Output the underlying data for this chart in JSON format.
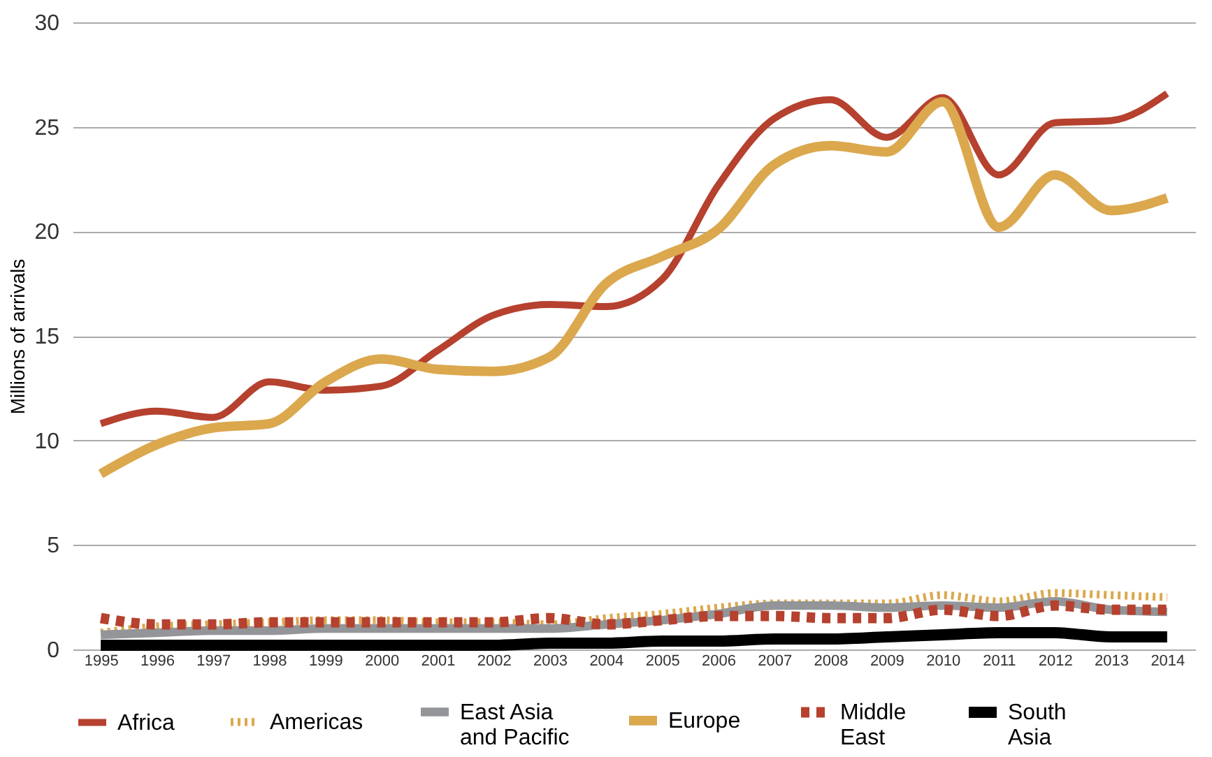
{
  "chart_data": {
    "type": "line",
    "ylabel": "Millions of arrivals",
    "categories": [
      "1995",
      "1996",
      "1997",
      "1998",
      "1999",
      "2000",
      "2001",
      "2002",
      "2003",
      "2004",
      "2005",
      "2006",
      "2007",
      "2008",
      "2009",
      "2010",
      "2011",
      "2012",
      "2013",
      "2014"
    ],
    "series": [
      {
        "name": "Africa",
        "color": "#b5412e",
        "line_style": "solid",
        "values": [
          10.8,
          11.4,
          11.1,
          12.8,
          12.4,
          12.6,
          14.3,
          16.0,
          16.5,
          16.4,
          17.7,
          22.2,
          25.4,
          26.3,
          24.5,
          26.4,
          22.7,
          25.2,
          25.3,
          26.6
        ]
      },
      {
        "name": "Americas",
        "color": "#dba84e",
        "line_style": "dotted",
        "values": [
          0.8,
          1.1,
          1.2,
          1.3,
          1.4,
          1.4,
          1.3,
          1.3,
          1.2,
          1.5,
          1.7,
          2.0,
          2.2,
          2.2,
          2.2,
          2.6,
          2.3,
          2.7,
          2.6,
          2.5
        ]
      },
      {
        "name": "East Asia and Pacific",
        "color": "#939598",
        "line_style": "solid",
        "values": [
          0.7,
          0.8,
          0.9,
          0.9,
          1.0,
          1.0,
          1.0,
          1.0,
          1.0,
          1.2,
          1.4,
          1.7,
          2.1,
          2.1,
          2.0,
          2.1,
          2.0,
          2.3,
          1.9,
          1.8
        ]
      },
      {
        "name": "Europe",
        "color": "#dba84e",
        "line_style": "solid",
        "values": [
          8.4,
          9.8,
          10.6,
          10.8,
          12.8,
          13.9,
          13.4,
          13.3,
          14.0,
          17.5,
          18.8,
          20.1,
          23.2,
          24.1,
          23.8,
          26.2,
          20.2,
          22.7,
          21.0,
          21.6
        ]
      },
      {
        "name": "Middle East",
        "color": "#b5412e",
        "line_style": "dashed",
        "values": [
          1.5,
          1.2,
          1.2,
          1.3,
          1.3,
          1.3,
          1.3,
          1.3,
          1.5,
          1.2,
          1.4,
          1.6,
          1.6,
          1.5,
          1.5,
          1.9,
          1.6,
          2.1,
          1.9,
          1.9
        ]
      },
      {
        "name": "South Asia",
        "color": "#000000",
        "line_style": "solid",
        "values": [
          0.2,
          0.2,
          0.2,
          0.2,
          0.2,
          0.2,
          0.2,
          0.2,
          0.3,
          0.3,
          0.4,
          0.4,
          0.5,
          0.5,
          0.6,
          0.7,
          0.8,
          0.8,
          0.6,
          0.6
        ]
      }
    ],
    "ylim": [
      0,
      30
    ],
    "yticks": [
      0,
      5,
      10,
      15,
      20,
      25,
      30
    ],
    "grid": "y",
    "legend": "bottom"
  }
}
